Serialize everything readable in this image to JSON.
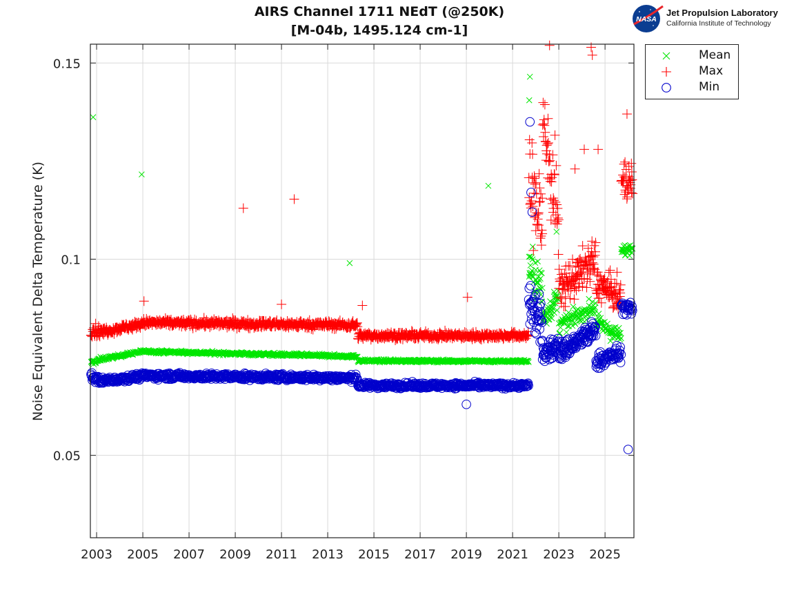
{
  "header": {
    "title_line1": "AIRS Channel 1711 NEdT (@250K)",
    "title_line2": "[M-04b, 1495.124 cm-1]"
  },
  "logo": {
    "icon": "nasa-meatball-icon",
    "badge_text": "NASA",
    "line1": "Jet Propulsion Laboratory",
    "line2": "California Institute of Technology"
  },
  "colors": {
    "mean": "#00e600",
    "max": "#ff0000",
    "min": "#0000cc",
    "grid": "#d9d9d9",
    "axis": "#222222"
  },
  "chart_data": {
    "type": "scatter",
    "title": "AIRS Channel 1711 NEdT (@250K) [M-04b, 1495.124 cm-1]",
    "xlabel": "",
    "ylabel": "Noise Equivalent Delta Temperature (K)",
    "xlim": [
      2002.73,
      2026.25
    ],
    "ylim": [
      0.029,
      0.1548
    ],
    "xticks": [
      2003,
      2005,
      2007,
      2009,
      2011,
      2013,
      2015,
      2017,
      2019,
      2021,
      2023,
      2025
    ],
    "xtick_labels": [
      "2003",
      "2005",
      "2007",
      "2009",
      "2011",
      "2013",
      "2015",
      "2017",
      "2019",
      "2021",
      "2023",
      "2025"
    ],
    "yticks": [
      0.05,
      0.1,
      0.15
    ],
    "ytick_labels": [
      "0.05",
      "0.1",
      "0.15"
    ],
    "grid": true,
    "legend_position": "outside-top-right",
    "series": [
      {
        "name": "Mean",
        "marker": "x",
        "color": "#00e600",
        "segments": [
          {
            "from": 2002.75,
            "to": 2003.2,
            "start": 0.0735,
            "end": 0.0745,
            "spread": 0.0012
          },
          {
            "from": 2003.2,
            "to": 2005.0,
            "start": 0.0745,
            "end": 0.0765,
            "spread": 0.0008
          },
          {
            "from": 2005.0,
            "to": 2014.3,
            "start": 0.0765,
            "end": 0.0752,
            "spread": 0.0008
          },
          {
            "from": 2014.3,
            "to": 2021.7,
            "start": 0.0741,
            "end": 0.074,
            "spread": 0.0007
          },
          {
            "from": 2021.7,
            "to": 2022.3,
            "start": 0.098,
            "end": 0.092,
            "spread": 0.012
          },
          {
            "from": 2022.3,
            "to": 2023.0,
            "start": 0.085,
            "end": 0.09,
            "spread": 0.006
          },
          {
            "from": 2023.0,
            "to": 2024.6,
            "start": 0.083,
            "end": 0.088,
            "spread": 0.004
          },
          {
            "from": 2024.6,
            "to": 2025.7,
            "start": 0.084,
            "end": 0.08,
            "spread": 0.004
          },
          {
            "from": 2025.7,
            "to": 2026.2,
            "start": 0.102,
            "end": 0.103,
            "spread": 0.003
          }
        ],
        "outliers": [
          [
            2002.85,
            0.1362
          ],
          [
            2004.95,
            0.1216
          ],
          [
            2013.95,
            0.099
          ],
          [
            2019.95,
            0.1187
          ],
          [
            2021.75,
            0.1465
          ],
          [
            2021.72,
            0.1405
          ],
          [
            2022.9,
            0.107
          ]
        ]
      },
      {
        "name": "Max",
        "marker": "+",
        "color": "#ff0000",
        "segments": [
          {
            "from": 2002.75,
            "to": 2003.2,
            "start": 0.082,
            "end": 0.0815,
            "spread": 0.003
          },
          {
            "from": 2003.2,
            "to": 2005.0,
            "start": 0.0815,
            "end": 0.0835,
            "spread": 0.002
          },
          {
            "from": 2005.0,
            "to": 2014.3,
            "start": 0.0838,
            "end": 0.0832,
            "spread": 0.002
          },
          {
            "from": 2014.3,
            "to": 2021.7,
            "start": 0.0805,
            "end": 0.0805,
            "spread": 0.0018
          },
          {
            "from": 2021.7,
            "to": 2022.3,
            "start": 0.12,
            "end": 0.11,
            "spread": 0.025
          },
          {
            "from": 2022.3,
            "to": 2023.0,
            "start": 0.135,
            "end": 0.11,
            "spread": 0.025
          },
          {
            "from": 2023.0,
            "to": 2024.6,
            "start": 0.092,
            "end": 0.1,
            "spread": 0.01
          },
          {
            "from": 2024.6,
            "to": 2025.7,
            "start": 0.094,
            "end": 0.09,
            "spread": 0.008
          },
          {
            "from": 2025.7,
            "to": 2026.2,
            "start": 0.12,
            "end": 0.12,
            "spread": 0.01
          }
        ],
        "outliers": [
          [
            2005.05,
            0.0893
          ],
          [
            2009.35,
            0.113
          ],
          [
            2011.0,
            0.0885
          ],
          [
            2011.55,
            0.1153
          ],
          [
            2014.5,
            0.0882
          ],
          [
            2019.05,
            0.0903
          ],
          [
            2022.6,
            0.1545
          ],
          [
            2023.7,
            0.123
          ],
          [
            2024.1,
            0.128
          ],
          [
            2024.4,
            0.154
          ],
          [
            2024.45,
            0.152
          ],
          [
            2024.7,
            0.128
          ],
          [
            2025.95,
            0.137
          ]
        ]
      },
      {
        "name": "Min",
        "marker": "o",
        "color": "#0000cc",
        "segments": [
          {
            "from": 2002.75,
            "to": 2003.2,
            "start": 0.07,
            "end": 0.069,
            "spread": 0.002
          },
          {
            "from": 2003.2,
            "to": 2005.0,
            "start": 0.069,
            "end": 0.0702,
            "spread": 0.0015
          },
          {
            "from": 2005.0,
            "to": 2014.3,
            "start": 0.0703,
            "end": 0.0697,
            "spread": 0.0015
          },
          {
            "from": 2014.3,
            "to": 2021.7,
            "start": 0.0678,
            "end": 0.0678,
            "spread": 0.0013
          },
          {
            "from": 2021.7,
            "to": 2022.3,
            "start": 0.09,
            "end": 0.082,
            "spread": 0.012
          },
          {
            "from": 2022.3,
            "to": 2023.0,
            "start": 0.076,
            "end": 0.078,
            "spread": 0.005
          },
          {
            "from": 2023.0,
            "to": 2024.6,
            "start": 0.076,
            "end": 0.082,
            "spread": 0.005
          },
          {
            "from": 2024.6,
            "to": 2025.7,
            "start": 0.074,
            "end": 0.076,
            "spread": 0.004
          },
          {
            "from": 2025.7,
            "to": 2026.2,
            "start": 0.088,
            "end": 0.087,
            "spread": 0.003
          }
        ],
        "outliers": [
          [
            2019.0,
            0.063
          ],
          [
            2021.75,
            0.135
          ],
          [
            2021.8,
            0.117
          ],
          [
            2021.85,
            0.112
          ],
          [
            2026.0,
            0.0515
          ]
        ]
      }
    ]
  }
}
